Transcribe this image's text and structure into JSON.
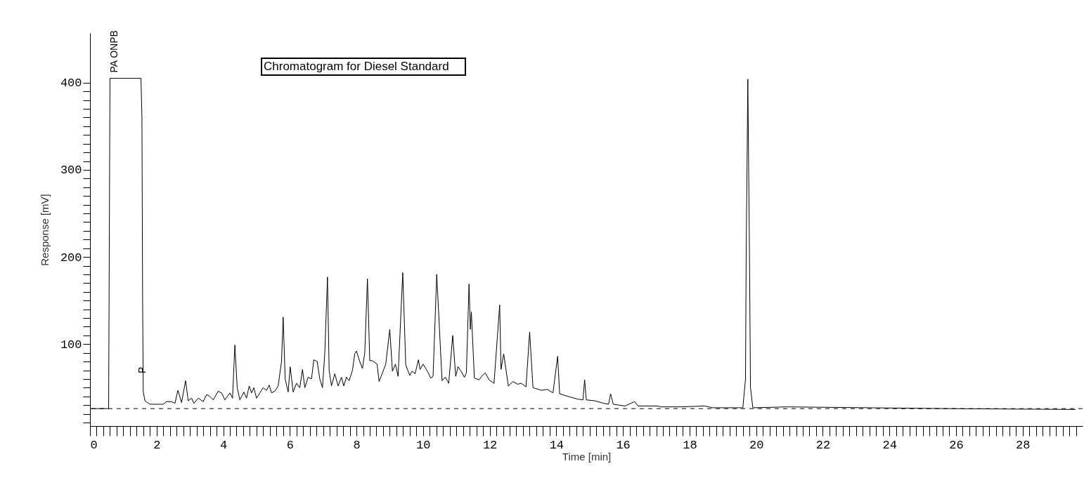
{
  "chart_data": {
    "type": "line",
    "title": "Chromatogram for Diesel Standard",
    "xlabel": "Time [min]",
    "ylabel": "Response [mV]",
    "xlim": [
      0,
      29.8
    ],
    "ylim": [
      6,
      457
    ],
    "xticks": [
      0,
      {
        "value": 0.2,
        "label": null
      },
      {
        "value": 0.4,
        "label": null
      },
      {
        "value": 0.6,
        "label": null
      },
      {
        "value": 0.8,
        "label": null
      },
      {
        "value": 1,
        "label": null
      },
      {
        "value": 1.2,
        "label": null
      },
      {
        "value": 1.4,
        "label": null
      },
      {
        "value": 1.6,
        "label": null
      },
      {
        "value": 1.8,
        "label": null
      },
      2,
      {
        "value": 2.2,
        "label": null
      },
      {
        "value": 2.4,
        "label": null
      },
      {
        "value": 2.6,
        "label": null
      },
      {
        "value": 2.8,
        "label": null
      },
      {
        "value": 3,
        "label": null
      },
      {
        "value": 3.2,
        "label": null
      },
      {
        "value": 3.4,
        "label": null
      },
      {
        "value": 3.6,
        "label": null
      },
      {
        "value": 3.8,
        "label": null
      },
      4,
      {
        "value": 4.2,
        "label": null
      },
      {
        "value": 4.4,
        "label": null
      },
      {
        "value": 4.6,
        "label": null
      },
      {
        "value": 4.8,
        "label": null
      },
      {
        "value": 5,
        "label": null
      },
      {
        "value": 5.2,
        "label": null
      },
      {
        "value": 5.4,
        "label": null
      },
      {
        "value": 5.6,
        "label": null
      },
      {
        "value": 5.8,
        "label": null
      },
      6,
      {
        "value": 6.2,
        "label": null
      },
      {
        "value": 6.4,
        "label": null
      },
      {
        "value": 6.6,
        "label": null
      },
      {
        "value": 6.8,
        "label": null
      },
      {
        "value": 7,
        "label": null
      },
      {
        "value": 7.2,
        "label": null
      },
      {
        "value": 7.4,
        "label": null
      },
      {
        "value": 7.6,
        "label": null
      },
      {
        "value": 7.8,
        "label": null
      },
      8,
      {
        "value": 8.2,
        "label": null
      },
      {
        "value": 8.4,
        "label": null
      },
      {
        "value": 8.6,
        "label": null
      },
      {
        "value": 8.8,
        "label": null
      },
      {
        "value": 9,
        "label": null
      },
      {
        "value": 9.2,
        "label": null
      },
      {
        "value": 9.4,
        "label": null
      },
      {
        "value": 9.6,
        "label": null
      },
      {
        "value": 9.8,
        "label": null
      },
      10,
      {
        "value": 10.2,
        "label": null
      },
      {
        "value": 10.4,
        "label": null
      },
      {
        "value": 10.6,
        "label": null
      },
      {
        "value": 10.8,
        "label": null
      },
      {
        "value": 11,
        "label": null
      },
      {
        "value": 11.2,
        "label": null
      },
      {
        "value": 11.4,
        "label": null
      },
      {
        "value": 11.6,
        "label": null
      },
      {
        "value": 11.8,
        "label": null
      },
      12,
      {
        "value": 12.2,
        "label": null
      },
      {
        "value": 12.4,
        "label": null
      },
      {
        "value": 12.6,
        "label": null
      },
      {
        "value": 12.8,
        "label": null
      },
      {
        "value": 13,
        "label": null
      },
      {
        "value": 13.2,
        "label": null
      },
      {
        "value": 13.4,
        "label": null
      },
      {
        "value": 13.6,
        "label": null
      },
      {
        "value": 13.8,
        "label": null
      },
      14,
      {
        "value": 14.2,
        "label": null
      },
      {
        "value": 14.4,
        "label": null
      },
      {
        "value": 14.6,
        "label": null
      },
      {
        "value": 14.8,
        "label": null
      },
      {
        "value": 15,
        "label": null
      },
      {
        "value": 15.2,
        "label": null
      },
      {
        "value": 15.4,
        "label": null
      },
      {
        "value": 15.6,
        "label": null
      },
      {
        "value": 15.8,
        "label": null
      },
      16,
      {
        "value": 16.2,
        "label": null
      },
      {
        "value": 16.4,
        "label": null
      },
      {
        "value": 16.6,
        "label": null
      },
      {
        "value": 16.8,
        "label": null
      },
      {
        "value": 17,
        "label": null
      },
      {
        "value": 17.2,
        "label": null
      },
      {
        "value": 17.4,
        "label": null
      },
      {
        "value": 17.6,
        "label": null
      },
      {
        "value": 17.8,
        "label": null
      },
      18,
      {
        "value": 18.2,
        "label": null
      },
      {
        "value": 18.4,
        "label": null
      },
      {
        "value": 18.6,
        "label": null
      },
      {
        "value": 18.8,
        "label": null
      },
      {
        "value": 19,
        "label": null
      },
      {
        "value": 19.2,
        "label": null
      },
      {
        "value": 19.4,
        "label": null
      },
      {
        "value": 19.6,
        "label": null
      },
      {
        "value": 19.8,
        "label": null
      },
      20,
      {
        "value": 20.2,
        "label": null
      },
      {
        "value": 20.4,
        "label": null
      },
      {
        "value": 20.6,
        "label": null
      },
      {
        "value": 20.8,
        "label": null
      },
      {
        "value": 21,
        "label": null
      },
      {
        "value": 21.2,
        "label": null
      },
      {
        "value": 21.4,
        "label": null
      },
      {
        "value": 21.6,
        "label": null
      },
      {
        "value": 21.8,
        "label": null
      },
      22,
      {
        "value": 22.2,
        "label": null
      },
      {
        "value": 22.4,
        "label": null
      },
      {
        "value": 22.6,
        "label": null
      },
      {
        "value": 22.8,
        "label": null
      },
      {
        "value": 23,
        "label": null
      },
      {
        "value": 23.2,
        "label": null
      },
      {
        "value": 23.4,
        "label": null
      },
      {
        "value": 23.6,
        "label": null
      },
      {
        "value": 23.8,
        "label": null
      },
      24,
      {
        "value": 24.2,
        "label": null
      },
      {
        "value": 24.4,
        "label": null
      },
      {
        "value": 24.6,
        "label": null
      },
      {
        "value": 24.8,
        "label": null
      },
      {
        "value": 25,
        "label": null
      },
      {
        "value": 25.2,
        "label": null
      },
      {
        "value": 25.4,
        "label": null
      },
      {
        "value": 25.6,
        "label": null
      },
      {
        "value": 25.8,
        "label": null
      },
      26,
      {
        "value": 26.2,
        "label": null
      },
      {
        "value": 26.4,
        "label": null
      },
      {
        "value": 26.6,
        "label": null
      },
      {
        "value": 26.8,
        "label": null
      },
      {
        "value": 27,
        "label": null
      },
      {
        "value": 27.2,
        "label": null
      },
      {
        "value": 27.4,
        "label": null
      },
      {
        "value": 27.6,
        "label": null
      },
      {
        "value": 27.8,
        "label": null
      },
      28,
      {
        "value": 28.2,
        "label": null
      },
      {
        "value": 28.4,
        "label": null
      },
      {
        "value": 28.6,
        "label": null
      },
      {
        "value": 28.8,
        "label": null
      },
      {
        "value": 29,
        "label": null
      },
      {
        "value": 29.2,
        "label": null
      },
      {
        "value": 29.4,
        "label": null
      },
      {
        "value": 29.6,
        "label": null
      }
    ],
    "yticks": [
      {
        "value": 10,
        "label": null
      },
      {
        "value": 20,
        "label": null
      },
      {
        "value": 30,
        "label": null
      },
      {
        "value": 40,
        "label": null
      },
      {
        "value": 50,
        "label": null
      },
      {
        "value": 60,
        "label": null
      },
      {
        "value": 70,
        "label": null
      },
      {
        "value": 80,
        "label": null
      },
      {
        "value": 90,
        "label": null
      },
      100,
      {
        "value": 110,
        "label": null
      },
      {
        "value": 120,
        "label": null
      },
      {
        "value": 130,
        "label": null
      },
      {
        "value": 140,
        "label": null
      },
      {
        "value": 150,
        "label": null
      },
      {
        "value": 160,
        "label": null
      },
      {
        "value": 170,
        "label": null
      },
      {
        "value": 180,
        "label": null
      },
      {
        "value": 190,
        "label": null
      },
      200,
      {
        "value": 210,
        "label": null
      },
      {
        "value": 220,
        "label": null
      },
      {
        "value": 230,
        "label": null
      },
      {
        "value": 240,
        "label": null
      },
      {
        "value": 250,
        "label": null
      },
      {
        "value": 260,
        "label": null
      },
      {
        "value": 270,
        "label": null
      },
      {
        "value": 280,
        "label": null
      },
      {
        "value": 290,
        "label": null
      },
      300,
      {
        "value": 310,
        "label": null
      },
      {
        "value": 320,
        "label": null
      },
      {
        "value": 330,
        "label": null
      },
      {
        "value": 340,
        "label": null
      },
      {
        "value": 350,
        "label": null
      },
      {
        "value": 360,
        "label": null
      },
      {
        "value": 370,
        "label": null
      },
      {
        "value": 380,
        "label": null
      },
      {
        "value": 390,
        "label": null
      },
      400
    ],
    "marker": "none",
    "line_style": "solid",
    "ref_lines": [
      {
        "axis": "y",
        "value": 26,
        "label": null,
        "line_style": "dashed",
        "color": "#000000"
      }
    ],
    "annotations": [
      {
        "text": "PA ONPB",
        "x": 0.73,
        "y": 405
      },
      {
        "text": "P",
        "x": 1.58,
        "y": 60
      }
    ],
    "series": [
      {
        "color": "#000000",
        "x": [
          0,
          0.56,
          0.6,
          1.53,
          1.56,
          1.58,
          1.6,
          1.65,
          1.72,
          1.8,
          2.0,
          2.2,
          2.3,
          2.45,
          2.55,
          2.64,
          2.75,
          2.87,
          2.95,
          3.05,
          3.12,
          3.25,
          3.4,
          3.5,
          3.6,
          3.7,
          3.85,
          3.95,
          4.05,
          4.2,
          4.28,
          4.35,
          4.42,
          4.5,
          4.62,
          4.7,
          4.78,
          4.85,
          4.92,
          5.0,
          5.1,
          5.2,
          5.3,
          5.38,
          5.45,
          5.55,
          5.65,
          5.75,
          5.8,
          5.86,
          5.95,
          6.01,
          6.1,
          6.2,
          6.3,
          6.38,
          6.45,
          6.55,
          6.65,
          6.72,
          6.82,
          6.9,
          6.98,
          7.05,
          7.13,
          7.18,
          7.25,
          7.35,
          7.45,
          7.55,
          7.62,
          7.7,
          7.78,
          7.88,
          7.95,
          8.0,
          8.1,
          8.18,
          8.25,
          8.33,
          8.4,
          8.48,
          8.62,
          8.68,
          8.88,
          9.0,
          9.08,
          9.17,
          9.25,
          9.39,
          9.48,
          9.6,
          9.67,
          9.76,
          9.86,
          9.91,
          10.0,
          10.13,
          10.23,
          10.3,
          10.41,
          10.57,
          10.67,
          10.77,
          10.89,
          10.98,
          11.05,
          11.14,
          11.24,
          11.3,
          11.38,
          11.42,
          11.45,
          11.54,
          11.68,
          11.78,
          11.87,
          11.98,
          12.13,
          12.3,
          12.34,
          12.42,
          12.56,
          12.7,
          12.84,
          12.95,
          13.09,
          13.2,
          13.3,
          13.55,
          13.73,
          13.9,
          14.04,
          14.1,
          14.35,
          14.63,
          14.8,
          14.85,
          14.9,
          15.15,
          15.43,
          15.57,
          15.63,
          15.71,
          16.06,
          16.35,
          16.45,
          17.05,
          17.12,
          17.75,
          18.45,
          18.7,
          19.6,
          19.68,
          19.7,
          19.75,
          19.8,
          19.83,
          19.9,
          20.95,
          25.69,
          29.59
        ],
        "values": [
          26,
          26,
          405,
          405,
          360,
          150,
          45,
          35,
          33,
          31,
          31,
          31,
          34,
          34,
          32,
          47,
          33,
          58,
          35,
          38,
          32,
          38,
          34,
          42,
          40,
          36,
          46,
          44,
          36,
          44,
          38,
          99,
          50,
          36,
          45,
          38,
          52,
          44,
          50,
          38,
          44,
          50,
          47,
          53,
          44,
          46,
          52,
          80,
          131,
          60,
          45,
          74,
          45,
          55,
          50,
          71,
          50,
          62,
          60,
          82,
          80,
          60,
          50,
          90,
          177,
          70,
          52,
          66,
          52,
          62,
          52,
          62,
          58,
          70,
          89,
          92,
          80,
          72,
          90,
          175,
          81,
          81,
          77,
          57,
          77,
          117,
          69,
          77,
          63,
          182,
          76,
          64,
          69,
          66,
          82,
          71,
          77,
          69,
          61,
          63,
          180,
          58,
          62,
          55,
          110,
          63,
          74,
          69,
          62,
          67,
          169,
          117,
          137,
          61,
          59,
          64,
          67,
          59,
          55,
          145,
          71,
          89,
          52,
          57,
          54,
          55,
          51,
          114,
          50,
          47,
          48,
          44,
          86,
          43,
          40,
          37,
          36,
          59,
          36,
          35,
          32,
          31,
          43,
          31,
          29,
          34,
          29,
          29,
          28,
          28,
          29,
          27,
          27,
          60,
          200,
          404,
          200,
          50,
          27,
          28,
          26,
          25
        ]
      }
    ]
  }
}
